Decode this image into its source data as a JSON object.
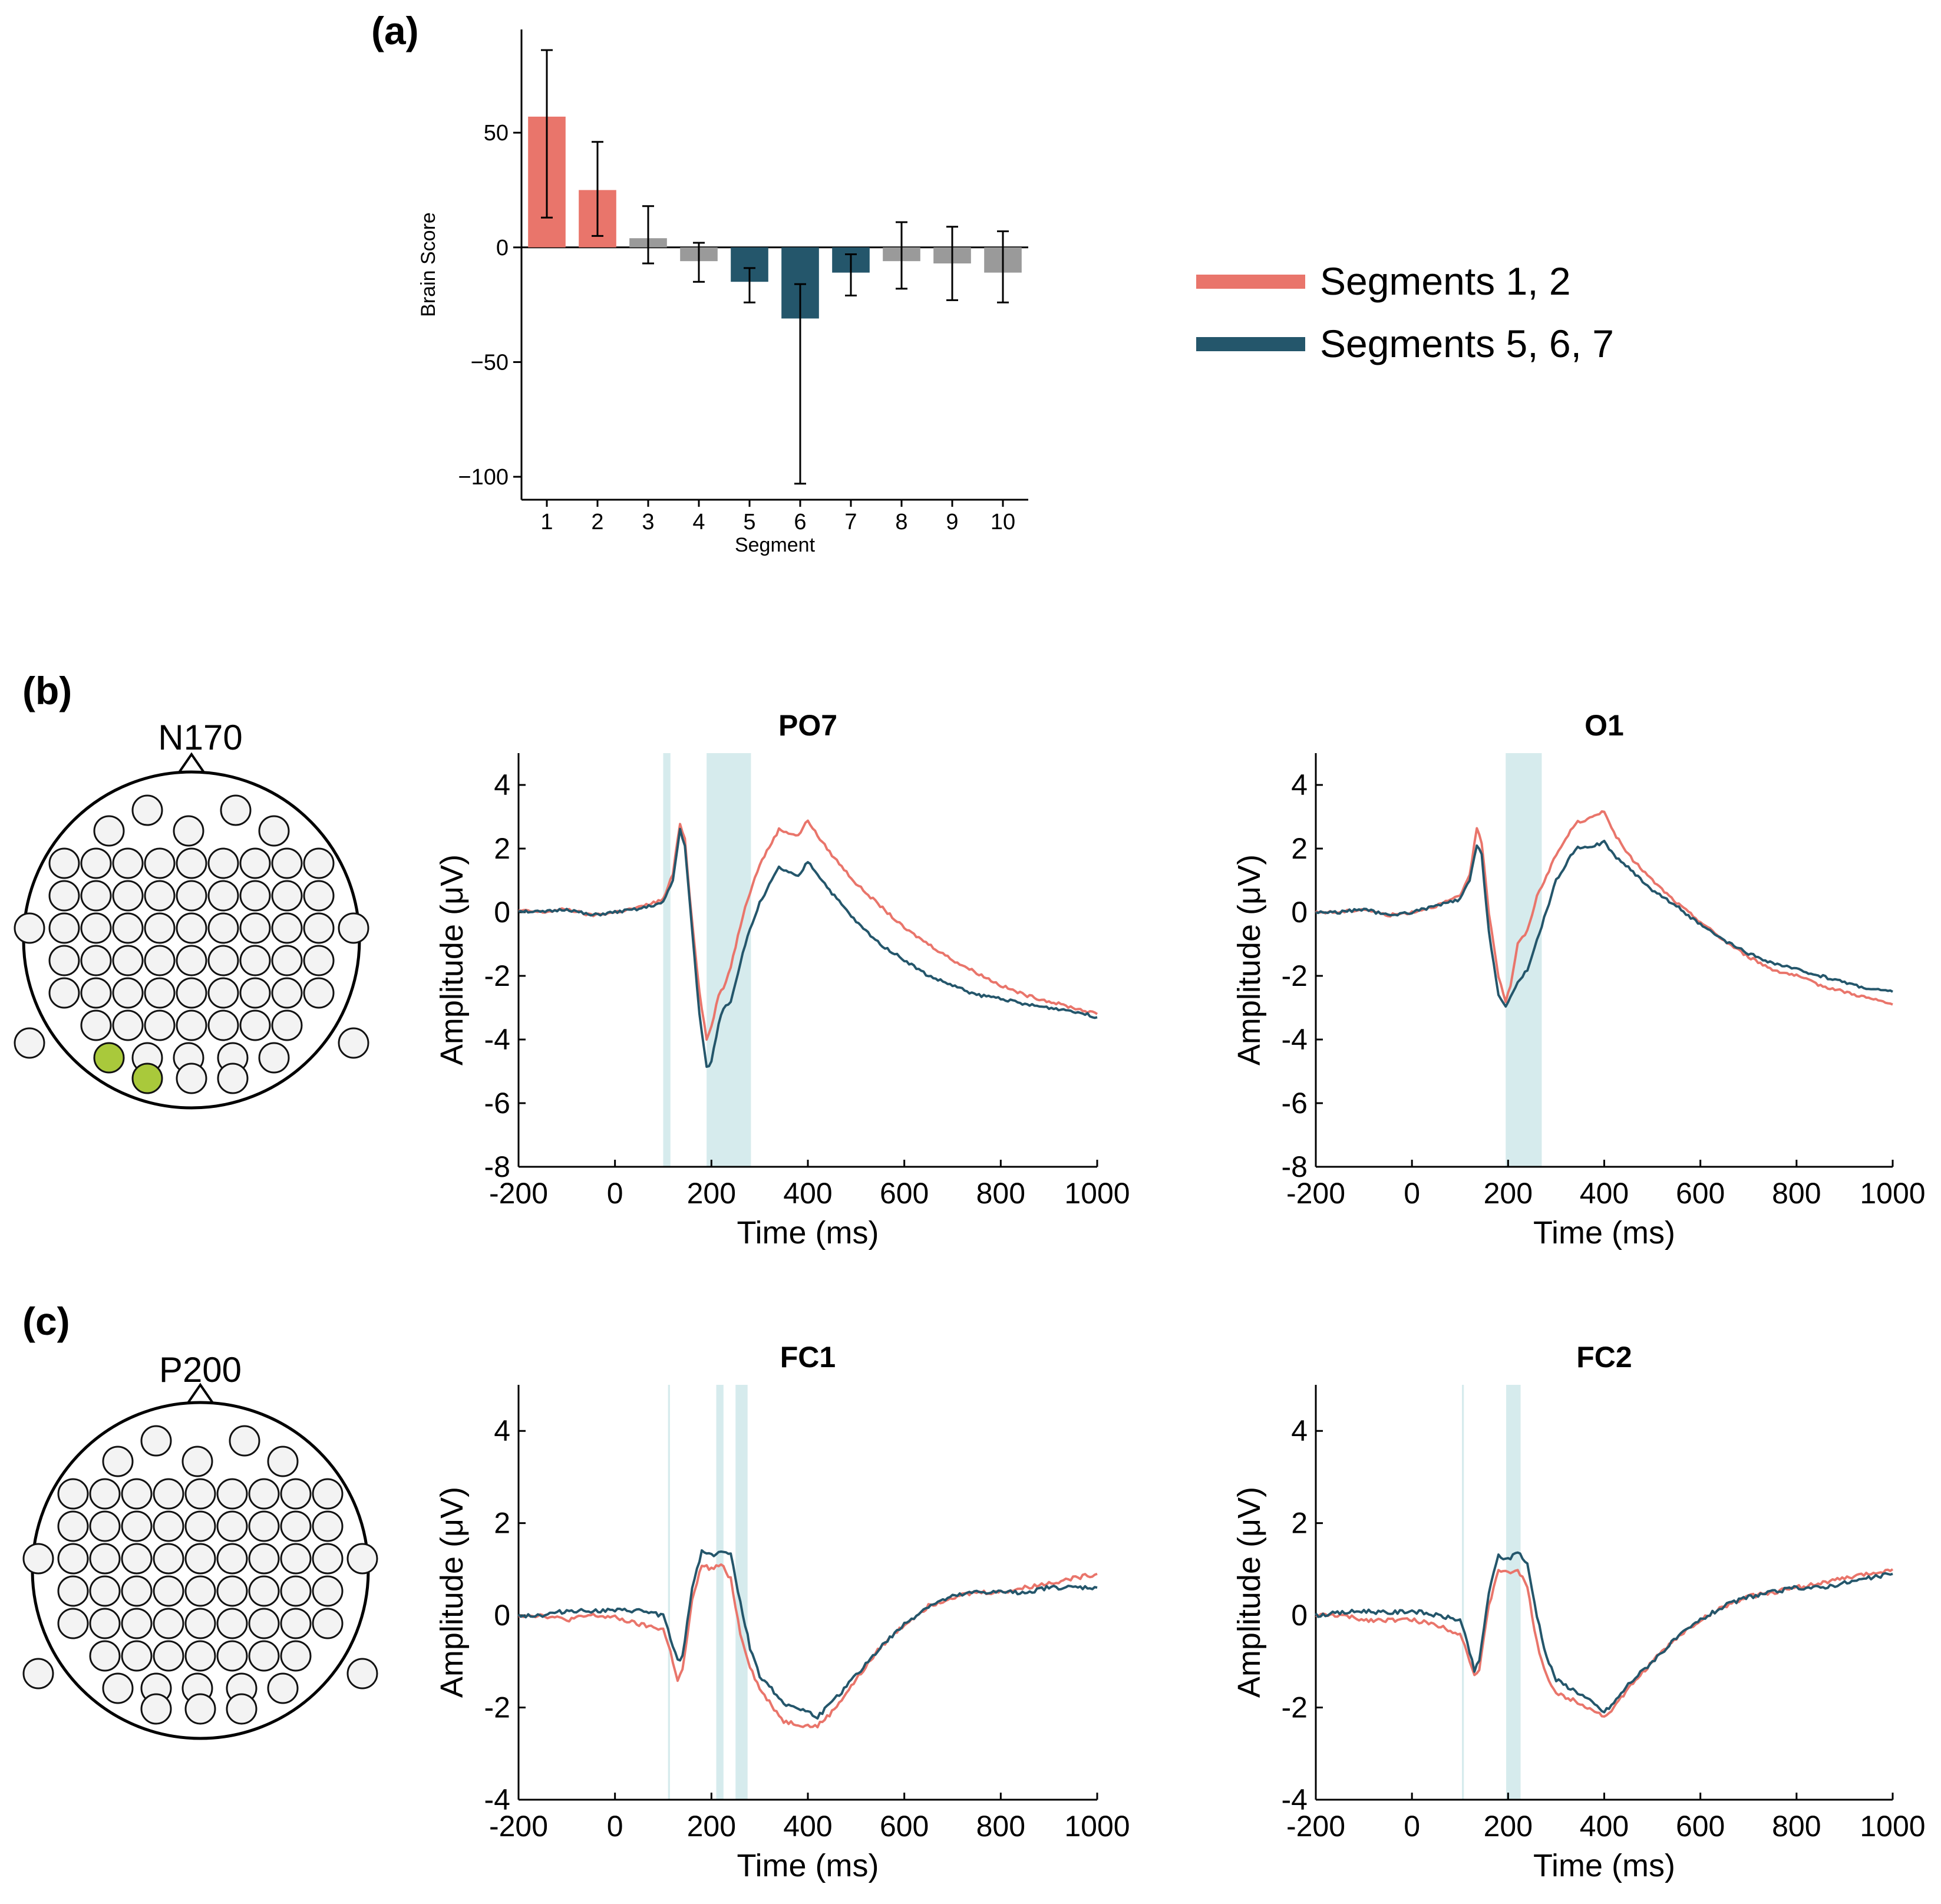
{
  "panels": {
    "a_label": "(a)",
    "b_label": "(b)",
    "c_label": "(c)"
  },
  "legend": {
    "items": [
      {
        "label": "Segments 1, 2",
        "color": "#e9756b"
      },
      {
        "label": "Segments 5, 6, 7",
        "color": "#24566b"
      }
    ]
  },
  "colors": {
    "red": "#e9756b",
    "blue": "#24566b",
    "gray": "#9a9a9a",
    "shade": "#cfe8ea",
    "electrode_highlight": "#a9c93b"
  },
  "heads": [
    {
      "label": "N170",
      "highlight": [
        "PO7",
        "O1"
      ]
    },
    {
      "label": "P200",
      "highlight": [
        "FC1",
        "FC2"
      ]
    }
  ],
  "chart_data": [
    {
      "type": "bar",
      "panel": "(a)",
      "title": "",
      "xlabel": "Segment",
      "ylabel": "Brain Score",
      "categories": [
        "1",
        "2",
        "3",
        "4",
        "5",
        "6",
        "7",
        "8",
        "9",
        "10"
      ],
      "values": [
        57,
        25,
        4,
        -6,
        -15,
        -31,
        -11,
        -6,
        -7,
        -11
      ],
      "error_low": [
        44,
        20,
        11,
        9,
        9,
        72,
        10,
        12,
        16,
        13
      ],
      "error_high": [
        29,
        21,
        14,
        8,
        6,
        15,
        8,
        17,
        16,
        18
      ],
      "bar_colors": [
        "red",
        "red",
        "gray",
        "gray",
        "blue",
        "blue",
        "blue",
        "gray",
        "gray",
        "gray"
      ],
      "ylim": [
        -110,
        95
      ],
      "yticks": [
        "50",
        "0",
        "−50",
        "−100"
      ],
      "ytick_values": [
        50,
        0,
        -50,
        -100
      ]
    },
    {
      "type": "line",
      "panel": "(b)",
      "title": "PO7",
      "xlabel": "Time (ms)",
      "ylabel": "Amplitude (μV)",
      "xlim": [
        -200,
        1000
      ],
      "ylim": [
        -8,
        5
      ],
      "xticks": [
        "-200",
        "0",
        "200",
        "400",
        "600",
        "800",
        "1000"
      ],
      "xtick_values": [
        -200,
        0,
        200,
        400,
        600,
        800,
        1000
      ],
      "yticks": [
        "4",
        "2",
        "0",
        "-2",
        "-4",
        "-6",
        "-8"
      ],
      "ytick_values": [
        4,
        2,
        0,
        -2,
        -4,
        -6,
        -8
      ],
      "shaded": [
        [
          100,
          115
        ],
        [
          190,
          282
        ]
      ],
      "series": [
        {
          "color": "red",
          "x": [
            -200,
            -150,
            -100,
            -50,
            0,
            50,
            100,
            120,
            135,
            145,
            155,
            175,
            190,
            200,
            215,
            225,
            240,
            270,
            300,
            340,
            380,
            400,
            420,
            450,
            500,
            550,
            600,
            650,
            700,
            750,
            800,
            850,
            900,
            950,
            1000
          ],
          "y": [
            0.05,
            0.0,
            0.1,
            -0.1,
            0.0,
            0.15,
            0.4,
            1.2,
            2.8,
            2.3,
            0.5,
            -2.5,
            -4.0,
            -3.6,
            -2.6,
            -2.4,
            -1.7,
            0.2,
            1.5,
            2.6,
            2.4,
            2.9,
            2.4,
            1.8,
            0.9,
            0.2,
            -0.5,
            -1.0,
            -1.5,
            -1.9,
            -2.3,
            -2.6,
            -2.8,
            -3.0,
            -3.2
          ]
        },
        {
          "color": "blue",
          "x": [
            -200,
            -150,
            -100,
            -50,
            0,
            50,
            100,
            120,
            135,
            145,
            155,
            175,
            190,
            200,
            215,
            225,
            240,
            270,
            300,
            340,
            380,
            400,
            420,
            450,
            500,
            550,
            600,
            650,
            700,
            750,
            800,
            850,
            900,
            950,
            1000
          ],
          "y": [
            0.05,
            0.0,
            0.1,
            -0.1,
            0.0,
            0.1,
            0.3,
            1.0,
            2.6,
            2.1,
            0.3,
            -3.2,
            -4.9,
            -4.7,
            -3.5,
            -3.0,
            -2.8,
            -1.0,
            0.3,
            1.4,
            1.1,
            1.6,
            1.2,
            0.6,
            -0.3,
            -1.0,
            -1.5,
            -2.0,
            -2.3,
            -2.6,
            -2.7,
            -2.9,
            -3.0,
            -3.1,
            -3.3
          ]
        }
      ]
    },
    {
      "type": "line",
      "panel": "(b)",
      "title": "O1",
      "xlabel": "Time (ms)",
      "ylabel": "Amplitude (μV)",
      "xlim": [
        -200,
        1000
      ],
      "ylim": [
        -8,
        5
      ],
      "xticks": [
        "-200",
        "0",
        "200",
        "400",
        "600",
        "800",
        "1000"
      ],
      "xtick_values": [
        -200,
        0,
        200,
        400,
        600,
        800,
        1000
      ],
      "yticks": [
        "4",
        "2",
        "0",
        "-2",
        "-4",
        "-6",
        "-8"
      ],
      "ytick_values": [
        4,
        2,
        0,
        -2,
        -4,
        -6,
        -8
      ],
      "shaded": [
        [
          195,
          270
        ]
      ],
      "series": [
        {
          "color": "red",
          "x": [
            -200,
            -150,
            -100,
            -50,
            0,
            50,
            100,
            120,
            135,
            145,
            160,
            180,
            195,
            205,
            220,
            240,
            260,
            300,
            340,
            380,
            400,
            420,
            450,
            500,
            550,
            600,
            650,
            700,
            750,
            800,
            850,
            900,
            950,
            1000
          ],
          "y": [
            0.0,
            0.0,
            0.1,
            -0.1,
            0.0,
            0.2,
            0.5,
            1.2,
            2.6,
            2.2,
            0.0,
            -2.0,
            -2.8,
            -2.3,
            -1.0,
            -0.6,
            0.5,
            1.8,
            2.8,
            3.0,
            3.2,
            2.5,
            1.8,
            1.0,
            0.3,
            -0.3,
            -0.9,
            -1.4,
            -1.8,
            -2.0,
            -2.3,
            -2.5,
            -2.7,
            -2.9
          ]
        },
        {
          "color": "blue",
          "x": [
            -200,
            -150,
            -100,
            -50,
            0,
            50,
            100,
            120,
            135,
            145,
            160,
            180,
            195,
            205,
            220,
            240,
            260,
            300,
            340,
            380,
            400,
            420,
            450,
            500,
            550,
            600,
            650,
            700,
            750,
            800,
            850,
            900,
            950,
            1000
          ],
          "y": [
            0.0,
            0.0,
            0.1,
            -0.1,
            0.0,
            0.2,
            0.4,
            1.0,
            2.1,
            1.8,
            -0.6,
            -2.6,
            -3.0,
            -2.7,
            -2.2,
            -1.8,
            -0.9,
            1.0,
            2.0,
            2.1,
            2.2,
            1.8,
            1.4,
            0.7,
            0.2,
            -0.4,
            -0.9,
            -1.3,
            -1.6,
            -1.8,
            -2.0,
            -2.2,
            -2.4,
            -2.5
          ]
        }
      ]
    },
    {
      "type": "line",
      "panel": "(c)",
      "title": "FC1",
      "xlabel": "Time (ms)",
      "ylabel": "Amplitude (μV)",
      "xlim": [
        -200,
        1000
      ],
      "ylim": [
        -4,
        5
      ],
      "xticks": [
        "-200",
        "0",
        "200",
        "400",
        "600",
        "800",
        "1000"
      ],
      "xtick_values": [
        -200,
        0,
        200,
        400,
        600,
        800,
        1000
      ],
      "yticks": [
        "4",
        "2",
        "0",
        "-2",
        "-4"
      ],
      "ytick_values": [
        4,
        2,
        0,
        -2,
        -4
      ],
      "shaded": [
        [
          110,
          114
        ],
        [
          210,
          225
        ],
        [
          250,
          275
        ]
      ],
      "series": [
        {
          "color": "red",
          "x": [
            -200,
            -150,
            -100,
            -50,
            0,
            50,
            100,
            115,
            130,
            140,
            160,
            180,
            200,
            220,
            240,
            260,
            280,
            300,
            350,
            400,
            420,
            450,
            500,
            550,
            600,
            650,
            700,
            750,
            800,
            850,
            900,
            950,
            1000
          ],
          "y": [
            0.0,
            0.0,
            -0.1,
            0.0,
            -0.05,
            -0.2,
            -0.3,
            -0.8,
            -1.4,
            -1.2,
            0.3,
            1.1,
            1.0,
            1.1,
            0.8,
            -0.4,
            -1.1,
            -1.6,
            -2.3,
            -2.4,
            -2.4,
            -2.1,
            -1.4,
            -0.7,
            -0.2,
            0.2,
            0.4,
            0.5,
            0.5,
            0.6,
            0.7,
            0.8,
            0.9
          ]
        },
        {
          "color": "blue",
          "x": [
            -200,
            -150,
            -100,
            -50,
            0,
            50,
            100,
            115,
            130,
            140,
            160,
            180,
            200,
            220,
            240,
            260,
            280,
            300,
            350,
            400,
            420,
            450,
            500,
            550,
            600,
            650,
            700,
            750,
            800,
            850,
            900,
            950,
            1000
          ],
          "y": [
            0.0,
            0.0,
            0.1,
            0.1,
            0.1,
            0.1,
            0.0,
            -0.5,
            -1.0,
            -0.9,
            0.6,
            1.4,
            1.3,
            1.4,
            1.3,
            0.3,
            -0.7,
            -1.3,
            -1.9,
            -2.1,
            -2.2,
            -1.9,
            -1.3,
            -0.7,
            -0.2,
            0.2,
            0.4,
            0.5,
            0.5,
            0.5,
            0.6,
            0.6,
            0.6
          ]
        }
      ]
    },
    {
      "type": "line",
      "panel": "(c)",
      "title": "FC2",
      "xlabel": "Time (ms)",
      "ylabel": "Amplitude (μV)",
      "xlim": [
        -200,
        1000
      ],
      "ylim": [
        -4,
        5
      ],
      "xticks": [
        "-200",
        "0",
        "200",
        "400",
        "600",
        "800",
        "1000"
      ],
      "xtick_values": [
        -200,
        0,
        200,
        400,
        600,
        800,
        1000
      ],
      "yticks": [
        "4",
        "2",
        "0",
        "-2",
        "-4"
      ],
      "ytick_values": [
        4,
        2,
        0,
        -2,
        -4
      ],
      "shaded": [
        [
          104,
          108
        ],
        [
          196,
          226
        ]
      ],
      "series": [
        {
          "color": "red",
          "x": [
            -200,
            -150,
            -100,
            -50,
            0,
            50,
            100,
            115,
            130,
            140,
            160,
            180,
            200,
            220,
            240,
            260,
            280,
            300,
            350,
            400,
            420,
            450,
            500,
            550,
            600,
            650,
            700,
            750,
            800,
            850,
            900,
            950,
            1000
          ],
          "y": [
            0.0,
            0.0,
            -0.1,
            -0.1,
            -0.1,
            -0.2,
            -0.4,
            -0.8,
            -1.3,
            -1.2,
            0.2,
            1.0,
            0.9,
            1.0,
            0.6,
            -0.6,
            -1.3,
            -1.7,
            -1.9,
            -2.2,
            -2.0,
            -1.6,
            -1.0,
            -0.5,
            -0.1,
            0.2,
            0.4,
            0.5,
            0.6,
            0.7,
            0.8,
            0.9,
            1.0
          ]
        },
        {
          "color": "blue",
          "x": [
            -200,
            -150,
            -100,
            -50,
            0,
            50,
            100,
            115,
            130,
            140,
            160,
            180,
            200,
            220,
            240,
            260,
            280,
            300,
            350,
            400,
            420,
            450,
            500,
            550,
            600,
            650,
            700,
            750,
            800,
            850,
            900,
            950,
            1000
          ],
          "y": [
            0.0,
            0.05,
            0.1,
            0.05,
            0.1,
            0.0,
            -0.1,
            -0.6,
            -1.2,
            -1.0,
            0.5,
            1.3,
            1.2,
            1.4,
            1.1,
            0.0,
            -0.9,
            -1.4,
            -1.7,
            -2.1,
            -1.9,
            -1.5,
            -1.0,
            -0.5,
            -0.1,
            0.2,
            0.4,
            0.5,
            0.6,
            0.6,
            0.7,
            0.8,
            0.9
          ]
        }
      ]
    }
  ]
}
